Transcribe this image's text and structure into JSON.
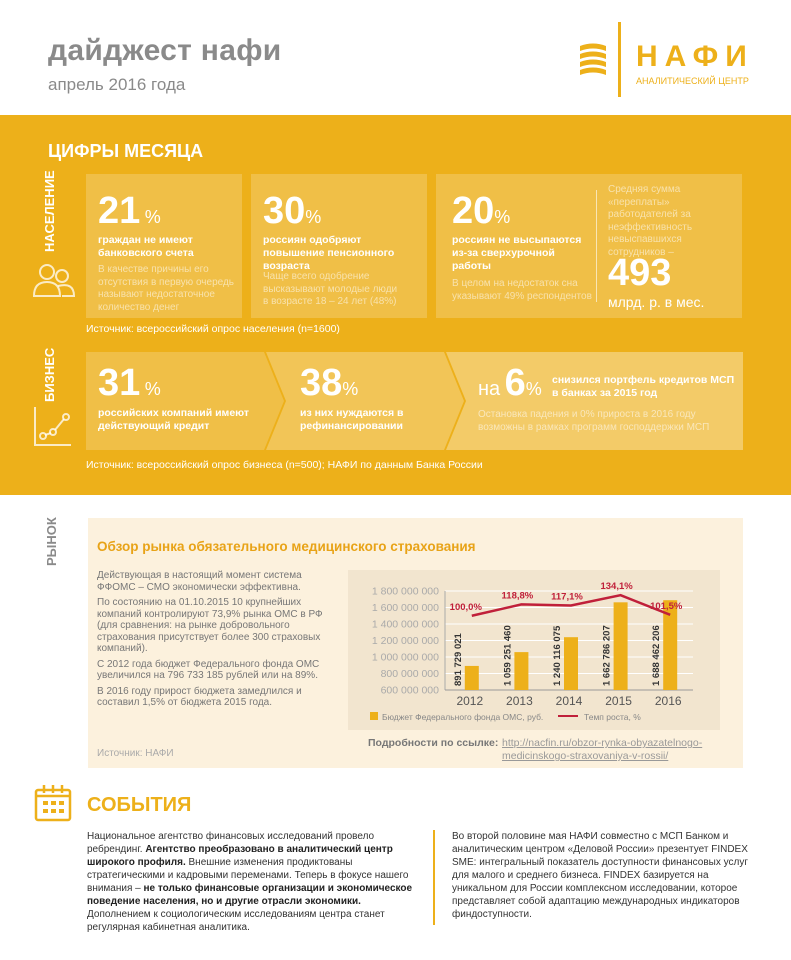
{
  "header": {
    "title": "дайджест нафи",
    "subtitle": "апрель 2016 года",
    "logo": {
      "name": "НАФИ",
      "tagline": "АНАЛИТИЧЕСКИЙ ЦЕНТР",
      "icon": "coin-stack-icon"
    }
  },
  "figures": {
    "title": "ЦИФРЫ МЕСЯЦА",
    "population": {
      "label": "НАСЕЛЕНИЕ",
      "icon": "people-icon",
      "cards": [
        {
          "value": "21",
          "unit": "%",
          "lead": "граждан не имеют банковского счета",
          "note": "В качестве причины его отсутствия в первую очередь называют недостаточное количество денег"
        },
        {
          "value": "30",
          "unit": "%",
          "lead": "россиян одобряют повышение пенсионного возраста",
          "note": "Чаще всего одобрение высказывают молодые люди в возрасте 18 – 24 лет (48%)"
        },
        {
          "value": "20",
          "unit": "%",
          "lead": "россиян не высыпаются из-за сверхурочной работы",
          "note": "В целом на недостаток сна указывают 49% респондентов"
        }
      ],
      "extra": {
        "note": "Средняя сумма «переплаты» работодателей за неэффективность невыспавшихся сотрудников –",
        "value": "493",
        "unit": "млрд. р. в мес."
      },
      "source": "Источник: всероссийский опрос населения (n=1600)"
    },
    "business": {
      "label": "БИЗНЕС",
      "icon": "line-chart-icon",
      "cards": [
        {
          "value": "31",
          "unit": "%",
          "lead": "российских компаний имеют действующий кредит"
        },
        {
          "value": "38",
          "unit": "%",
          "lead": "из них нуждаются в рефинансировании"
        },
        {
          "prefix": "на",
          "value": "6",
          "unit": "%",
          "lead": "снизился портфель кредитов МСП в банках за 2015 год",
          "note": "Остановка падения и 0% прироста в 2016 году возможны в рамках программ господдержки МСП"
        }
      ],
      "source": "Источник: всероссийский опрос бизнеса (n=500); НАФИ по данным Банка России"
    }
  },
  "market": {
    "label": "РЫНОК",
    "title": "Обзор рынка обязательного медицинского страхования",
    "paragraphs": [
      "Действующая  в настоящий момент система ФФОМС – СМО экономически эффективна.",
      "По состоянию на 01.10.2015 10 крупнейших компаний контролируют 73,9% рынка ОМС в РФ (для сравнения: на рынке добровольного страхования присутствует более 300 страховых компаний).",
      "С 2012 года бюджет Федерального фонда ОМС увеличился на 796 733 185 рублей или на 89%.",
      "В 2016 году прирост бюджета замедлился и составил 1,5% от бюджета 2015 года."
    ],
    "source": "Источник: НАФИ",
    "link_label": "Подробности по ссылке:",
    "link_url": "http://nacfin.ru/obzor-rynka-obyazatelnogo-medicinskogo-straxovaniya-v-rossii/",
    "link_line1": "http://nacfin.ru/obzor-rynka-obyazatelnogo-",
    "link_line2": "medicinskogo-straxovaniya-v-rossii/"
  },
  "chart_data": {
    "type": "bar+line",
    "categories": [
      "2012",
      "2013",
      "2014",
      "2015",
      "2016"
    ],
    "ylim": [
      600000000,
      1800000000
    ],
    "yticks": [
      "600 000 000",
      "800 000 000",
      "1 000 000 000",
      "1 200 000 000",
      "1 400 000 000",
      "1 600 000 000",
      "1 800 000 000"
    ],
    "series": [
      {
        "name": "Бюджет Федерального фонда ОМС, руб.",
        "type": "bar",
        "color": "#EDB01A",
        "values": [
          891729021,
          1059251460,
          1240116075,
          1662786207,
          1688462206
        ],
        "labels": [
          "891 729 021",
          "1 059 251 460",
          "1 240 116 075",
          "1 662 786 207",
          "1 688 462 206"
        ]
      },
      {
        "name": "Темп роста, %",
        "type": "line",
        "color": "#C0203A",
        "values": [
          100.0,
          118.8,
          117.1,
          134.1,
          101.5
        ],
        "labels": [
          "100,0%",
          "118,8%",
          "117,1%",
          "134,1%",
          "101,5%"
        ]
      }
    ],
    "grid": true,
    "legend": "bottom"
  },
  "events": {
    "title": "СОБЫТИЯ",
    "icon": "calendar-icon",
    "left": [
      {
        "t": "Национальное агентство финансовых исследований провело ребрендинг. ",
        "b": false
      },
      {
        "t": "Агентство преобразовано в аналитический центр широкого профиля.",
        "b": true
      },
      {
        "t": " Внешние изменения продиктованы стратегическими и кадровыми переменами. Теперь в фокусе нашего внимания – ",
        "b": false
      },
      {
        "t": "не только финансовые организации и экономическое поведение населения, но и другие отрасли экономики.",
        "b": true
      },
      {
        "t": " Дополнением к социологическим исследованиям центра станет регулярная кабинетная аналитика.",
        "b": false
      }
    ],
    "right": "Во второй половине мая НАФИ совместно с МСП Банком и аналитическим центром «Деловой России» презентует FINDEX SME: интегральный показатель доступности финансовых услуг для малого и среднего бизнеса. FINDEX базируется на уникальном для России комплексном исследовании, которое представляет собой адаптацию международных индикаторов финдоступности."
  },
  "colors": {
    "accent": "#EDB01A",
    "market_bg": "#FCF1DD",
    "line": "#C0203A",
    "title_orange": "#E8A317"
  }
}
